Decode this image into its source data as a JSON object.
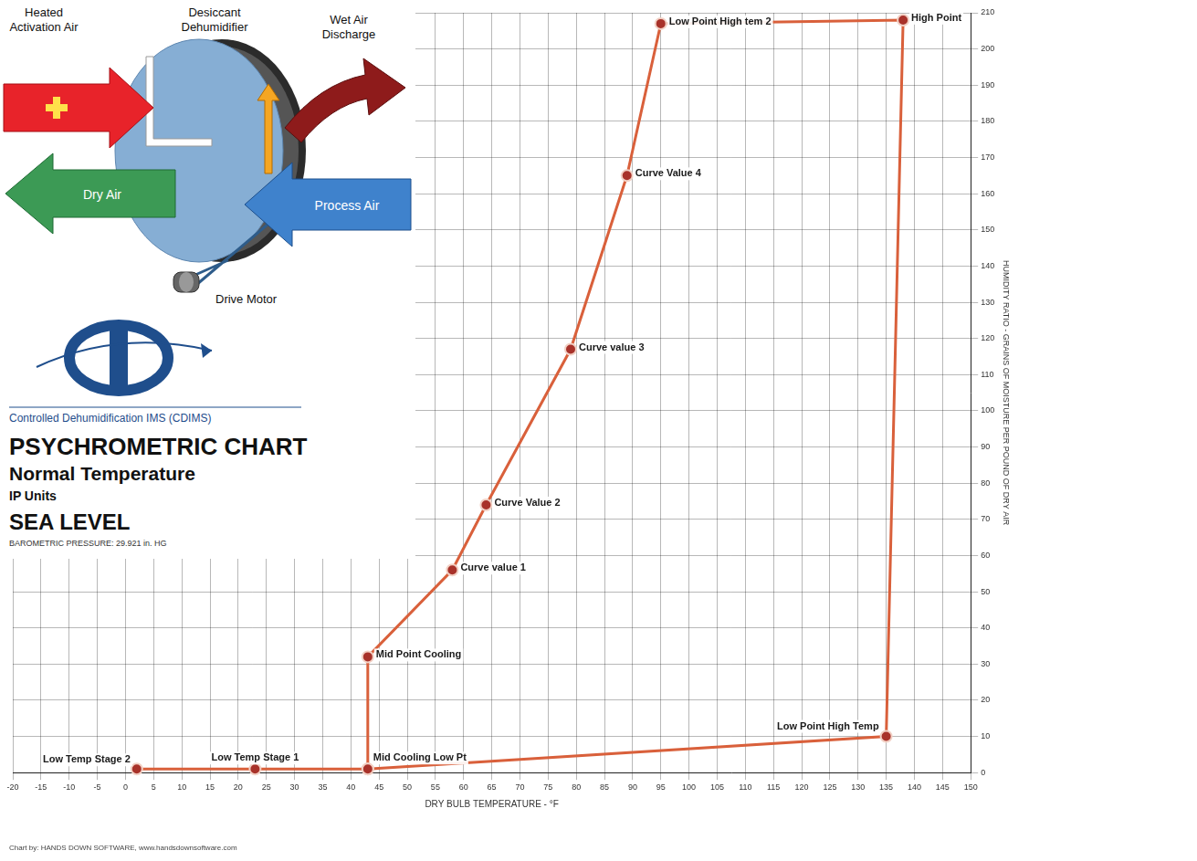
{
  "diagram": {
    "activation_air": [
      "Heated",
      "Activation Air"
    ],
    "dehumidifier": [
      "Desiccant",
      "Dehumidifier"
    ],
    "wet_air": [
      "Wet Air",
      "Discharge"
    ],
    "dry_air": "Dry Air",
    "process_air": "Process Air",
    "drive_motor": "Drive Motor"
  },
  "logo": {
    "text": "Controlled Dehumidification IMS (CDIMS)"
  },
  "header": {
    "title": "PSYCHROMETRIC CHART",
    "subtitle": "Normal Temperature",
    "units": "IP Units",
    "altitude": "SEA LEVEL",
    "pressure": "BAROMETRIC PRESSURE: 29.921 in. HG"
  },
  "credit": "Chart by: HANDS DOWN SOFTWARE, www.handsdownsoftware.com",
  "chart_data": {
    "type": "scatter",
    "x_label": "DRY BULB TEMPERATURE - °F",
    "y_label": "HUMIDITY RATIO - GRAINS OF MOISTURE PER POUND OF DRY AIR",
    "xlim": [
      -20,
      150
    ],
    "xticks": [
      -20,
      -15,
      -10,
      -5,
      0,
      5,
      10,
      15,
      20,
      25,
      30,
      35,
      40,
      45,
      50,
      55,
      60,
      65,
      70,
      75,
      80,
      85,
      90,
      95,
      100,
      105,
      110,
      115,
      120,
      125,
      130,
      135,
      140,
      145,
      150
    ],
    "ylim": [
      0,
      210
    ],
    "yticks": [
      0,
      10,
      20,
      30,
      40,
      50,
      60,
      70,
      80,
      90,
      100,
      110,
      120,
      130,
      140,
      150,
      160,
      170,
      180,
      190,
      200,
      210
    ],
    "grid": true,
    "series": [
      {
        "color": "#d9603b",
        "marker": "circle",
        "line_style": "solid",
        "x": [
          2,
          23,
          43,
          43,
          58,
          64,
          79,
          89,
          95,
          138,
          135,
          43
        ],
        "values": [
          1,
          1,
          1,
          32,
          56,
          74,
          117,
          165,
          207,
          208,
          10,
          1
        ],
        "point_labels": [
          "Low Temp Stage 2",
          "Low Temp Stage 1",
          "Mid Cooling Low Pt",
          "Mid Point Cooling",
          "Curve value 1",
          "Curve Value 2",
          "Curve value 3",
          "Curve Value 4",
          "Low Point High tem 2",
          "High Point",
          "Low Point High Temp",
          null
        ]
      }
    ]
  }
}
